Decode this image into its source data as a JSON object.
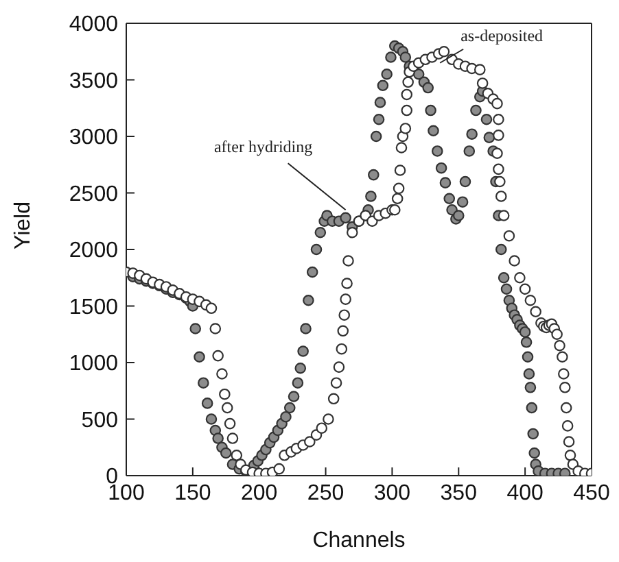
{
  "chart_data": {
    "type": "scatter",
    "xlabel": "Channels",
    "ylabel": "Yield",
    "xlim": [
      100,
      450
    ],
    "ylim": [
      0,
      4000
    ],
    "xticks": [
      100,
      150,
      200,
      250,
      300,
      350,
      400,
      450
    ],
    "yticks": [
      0,
      500,
      1000,
      1500,
      2000,
      2500,
      3000,
      3500,
      4000
    ],
    "marker": "circle",
    "annotations": [
      {
        "text": "after hydriding",
        "x": 265,
        "y": 2350
      },
      {
        "text": "as-deposited",
        "x": 336,
        "y": 3650
      }
    ],
    "series": [
      {
        "color": "#ffffff",
        "x": [
          100,
          105,
          110,
          115,
          120,
          125,
          130,
          135,
          140,
          145,
          150,
          155,
          160,
          164,
          167,
          169,
          172,
          174,
          176,
          178,
          180,
          183,
          186,
          190,
          195,
          200,
          205,
          210,
          215,
          219,
          224,
          228,
          233,
          238,
          243,
          247,
          252,
          256,
          258,
          260,
          262,
          263,
          264,
          265,
          266,
          267,
          270,
          275,
          280,
          285,
          290,
          295,
          300,
          302,
          304,
          305,
          306,
          307,
          308,
          310,
          311,
          311,
          312,
          313,
          316,
          320,
          325,
          330,
          335,
          339,
          345,
          350,
          355,
          360,
          366,
          368,
          372,
          376,
          379,
          380,
          380,
          379,
          380,
          381,
          382,
          384,
          388,
          392,
          396,
          400,
          404,
          408,
          412,
          414,
          416,
          418,
          420,
          422,
          424,
          426,
          428,
          429,
          430,
          431,
          432,
          433,
          434,
          436,
          440,
          445,
          450
        ],
        "values": [
          1800,
          1790,
          1770,
          1740,
          1710,
          1690,
          1670,
          1640,
          1610,
          1580,
          1560,
          1540,
          1510,
          1480,
          1300,
          1060,
          900,
          720,
          600,
          460,
          330,
          180,
          100,
          50,
          30,
          20,
          20,
          30,
          60,
          180,
          210,
          240,
          270,
          300,
          360,
          420,
          500,
          680,
          820,
          960,
          1120,
          1280,
          1420,
          1560,
          1700,
          1900,
          2150,
          2250,
          2300,
          2250,
          2300,
          2320,
          2350,
          2350,
          2450,
          2540,
          2700,
          2900,
          3000,
          3070,
          3230,
          3370,
          3480,
          3570,
          3620,
          3650,
          3680,
          3700,
          3730,
          3750,
          3680,
          3640,
          3620,
          3600,
          3590,
          3470,
          3380,
          3330,
          3290,
          3150,
          3010,
          2850,
          2710,
          2600,
          2470,
          2300,
          2120,
          1900,
          1750,
          1650,
          1550,
          1450,
          1350,
          1320,
          1310,
          1330,
          1340,
          1300,
          1250,
          1150,
          1050,
          900,
          780,
          600,
          440,
          300,
          180,
          100,
          40,
          20,
          20
        ]
      },
      {
        "color": "#8c8c8c",
        "x": [
          105,
          110,
          115,
          120,
          125,
          130,
          135,
          140,
          145,
          148,
          150,
          152,
          155,
          158,
          161,
          164,
          167,
          169,
          172,
          175,
          180,
          185,
          190,
          196,
          199,
          202,
          205,
          208,
          211,
          214,
          217,
          220,
          223,
          226,
          229,
          231,
          233,
          235,
          237,
          240,
          243,
          246,
          249,
          251,
          255,
          260,
          265,
          270,
          275,
          280,
          282,
          284,
          286,
          288,
          290,
          291,
          293,
          296,
          299,
          302,
          305,
          308,
          310,
          313,
          320,
          324,
          327,
          329,
          331,
          334,
          337,
          340,
          343,
          345,
          348,
          350,
          353,
          355,
          358,
          360,
          363,
          366,
          368,
          371,
          373,
          376,
          378,
          380,
          382,
          384,
          386,
          388,
          390,
          392,
          394,
          396,
          398,
          400,
          401,
          402,
          403,
          404,
          405,
          406,
          407,
          408,
          410,
          415,
          420,
          425,
          430
        ],
        "values": [
          1760,
          1740,
          1720,
          1700,
          1680,
          1650,
          1620,
          1600,
          1570,
          1540,
          1500,
          1300,
          1050,
          820,
          640,
          500,
          400,
          330,
          250,
          200,
          100,
          60,
          40,
          90,
          130,
          180,
          230,
          290,
          340,
          400,
          460,
          520,
          600,
          700,
          820,
          950,
          1100,
          1300,
          1550,
          1800,
          2000,
          2150,
          2250,
          2300,
          2250,
          2250,
          2280,
          2200,
          2250,
          2300,
          2350,
          2470,
          2660,
          3000,
          3150,
          3300,
          3450,
          3550,
          3700,
          3800,
          3780,
          3750,
          3700,
          3620,
          3550,
          3480,
          3430,
          3230,
          3050,
          2870,
          2720,
          2590,
          2450,
          2350,
          2270,
          2300,
          2420,
          2600,
          2870,
          3020,
          3230,
          3350,
          3400,
          3150,
          2990,
          2870,
          2600,
          2300,
          2000,
          1750,
          1650,
          1550,
          1480,
          1420,
          1380,
          1330,
          1300,
          1270,
          1180,
          1050,
          900,
          780,
          600,
          370,
          200,
          100,
          40,
          20,
          20,
          20,
          20
        ]
      }
    ]
  }
}
